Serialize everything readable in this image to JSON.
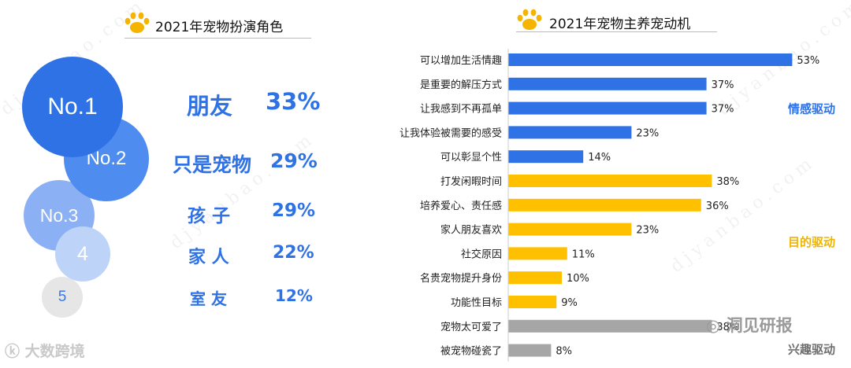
{
  "left_panel": {
    "title": "2021年宠物扮演角色",
    "ranks": [
      {
        "badge": "No.1",
        "label": "朋友",
        "pct": "33%"
      },
      {
        "badge": "No.2",
        "label": "只是宠物",
        "pct": "29%"
      },
      {
        "badge": "No.3",
        "label": "孩 子",
        "pct": "29%"
      },
      {
        "badge": "4",
        "label": "家 人",
        "pct": "22%"
      },
      {
        "badge": "5",
        "label": "室 友",
        "pct": "12%"
      }
    ],
    "colors": [
      "#2e72e6",
      "#4f8cef",
      "#8bb0f3",
      "#bdd3f8",
      "#e6e6e6"
    ]
  },
  "right_panel": {
    "title": "2021年宠物主养宠动机"
  },
  "chart_data": {
    "type": "bar",
    "orientation": "horizontal",
    "title": "2021年宠物主养宠动机",
    "categories": [
      "可以增加生活情趣",
      "是重要的解压方式",
      "让我感到不再孤单",
      "让我体验被需要的感受",
      "可以彰显个性",
      "打发闲暇时间",
      "培养爱心、责任感",
      "家人朋友喜欢",
      "社交原因",
      "名贵宠物提升身份",
      "功能性目标",
      "宠物太可爱了",
      "被宠物碰瓷了"
    ],
    "values": [
      53,
      37,
      37,
      23,
      14,
      38,
      36,
      23,
      11,
      10,
      9,
      38,
      8
    ],
    "value_labels": [
      "53%",
      "37%",
      "37%",
      "23%",
      "14%",
      "38%",
      "36%",
      "23%",
      "11%",
      "10%",
      "9%",
      "38%",
      "8%"
    ],
    "groups": [
      {
        "name": "情感驱动",
        "start": 0,
        "end": 4,
        "color": "#2e72e6",
        "label_color": "#2e72e6"
      },
      {
        "name": "目的驱动",
        "start": 5,
        "end": 10,
        "color": "#ffc000",
        "label_color": "#f0b400"
      },
      {
        "name": "兴趣驱动",
        "start": 11,
        "end": 12,
        "color": "#a6a6a6",
        "label_color": "#6f6f6f"
      }
    ],
    "unit": "%"
  },
  "logos": {
    "left": "大数跨境",
    "right": "洞见研报"
  },
  "watermark_text": "djyanbao.com",
  "paw_color": "#f5b400"
}
